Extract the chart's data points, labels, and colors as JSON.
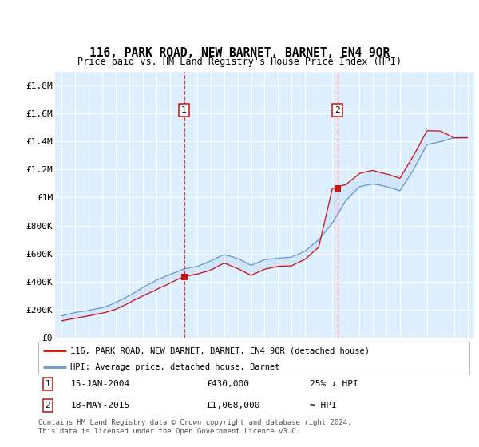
{
  "title": "116, PARK ROAD, NEW BARNET, BARNET, EN4 9QR",
  "subtitle": "Price paid vs. HM Land Registry's House Price Index (HPI)",
  "plot_bg_color": "#ddeeff",
  "sale1_year": 2004.04,
  "sale1_price": 430000,
  "sale2_year": 2015.38,
  "sale2_price": 1068000,
  "legend_line1": "116, PARK ROAD, NEW BARNET, BARNET, EN4 9QR (detached house)",
  "legend_line2": "HPI: Average price, detached house, Barnet",
  "footer": "Contains HM Land Registry data © Crown copyright and database right 2024.\nThis data is licensed under the Open Government Licence v3.0.",
  "ylabel_ticks": [
    "£0",
    "£200K",
    "£400K",
    "£600K",
    "£800K",
    "£1M",
    "£1.2M",
    "£1.4M",
    "£1.6M",
    "£1.8M"
  ],
  "ytick_vals": [
    0,
    200000,
    400000,
    600000,
    800000,
    1000000,
    1200000,
    1400000,
    1600000,
    1800000
  ],
  "xlim": [
    1994.5,
    2025.5
  ],
  "ylim": [
    0,
    1900000
  ],
  "hpi_anchors_years": [
    1995,
    1996,
    1997,
    1998,
    1999,
    2000,
    2001,
    2002,
    2003,
    2004,
    2005,
    2006,
    2007,
    2008,
    2009,
    2010,
    2011,
    2012,
    2013,
    2014,
    2015,
    2016,
    2017,
    2018,
    2019,
    2020,
    2021,
    2022,
    2023,
    2024,
    2025
  ],
  "hpi_anchors_vals": [
    155000,
    175000,
    195000,
    215000,
    250000,
    300000,
    360000,
    410000,
    450000,
    490000,
    510000,
    550000,
    600000,
    570000,
    520000,
    560000,
    570000,
    575000,
    620000,
    700000,
    820000,
    980000,
    1080000,
    1100000,
    1080000,
    1050000,
    1200000,
    1380000,
    1400000,
    1430000,
    1430000
  ],
  "red_anchors_years": [
    1995,
    1996,
    1997,
    1998,
    1999,
    2000,
    2001,
    2002,
    2003,
    2004,
    2005,
    2006,
    2007,
    2008,
    2009,
    2010,
    2011,
    2012,
    2013,
    2014,
    2015,
    2016,
    2017,
    2018,
    2019,
    2020,
    2021,
    2022,
    2023,
    2024,
    2025
  ],
  "red_anchors_vals": [
    120000,
    138000,
    155000,
    172000,
    200000,
    245000,
    295000,
    340000,
    385000,
    430000,
    450000,
    480000,
    530000,
    490000,
    445000,
    490000,
    510000,
    510000,
    560000,
    650000,
    1068000,
    1100000,
    1180000,
    1200000,
    1170000,
    1140000,
    1300000,
    1480000,
    1480000,
    1430000,
    1430000
  ]
}
